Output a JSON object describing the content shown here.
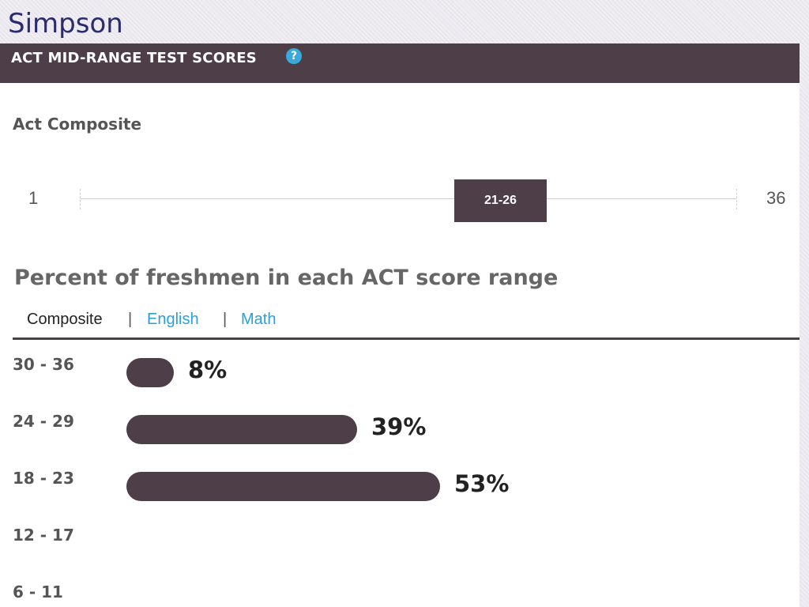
{
  "page": {
    "school_name": "Simpson"
  },
  "panel": {
    "header_title": "ACT MID-RANGE TEST SCORES",
    "help_icon": "question-circle-icon",
    "header_color": "#4d3e48",
    "accent_color": "#3aa9dd"
  },
  "composite": {
    "label": "Act Composite",
    "min_label": "1",
    "max_label": "36",
    "range_min": 1,
    "range_max": 36,
    "mid_range_label": "21-26",
    "mid_range_low": 21,
    "mid_range_high": 26
  },
  "distribution": {
    "title": "Percent of freshmen in each ACT score range",
    "tabs": [
      {
        "label": "Composite",
        "active": true
      },
      {
        "label": "English",
        "active": false
      },
      {
        "label": "Math",
        "active": false
      }
    ],
    "tab_separator": "|"
  },
  "chart_data": {
    "type": "bar",
    "orientation": "horizontal",
    "title": "Percent of freshmen in each ACT score range",
    "categories": [
      "30 - 36",
      "24 - 29",
      "18 - 23",
      "12 - 17",
      "6 - 11"
    ],
    "values": [
      8,
      39,
      53,
      null,
      null
    ],
    "value_labels": [
      "8%",
      "39%",
      "53%",
      "",
      ""
    ],
    "unit": "%",
    "xlim": [
      0,
      100
    ],
    "grid": false,
    "bar_color": "#4d3e48"
  }
}
